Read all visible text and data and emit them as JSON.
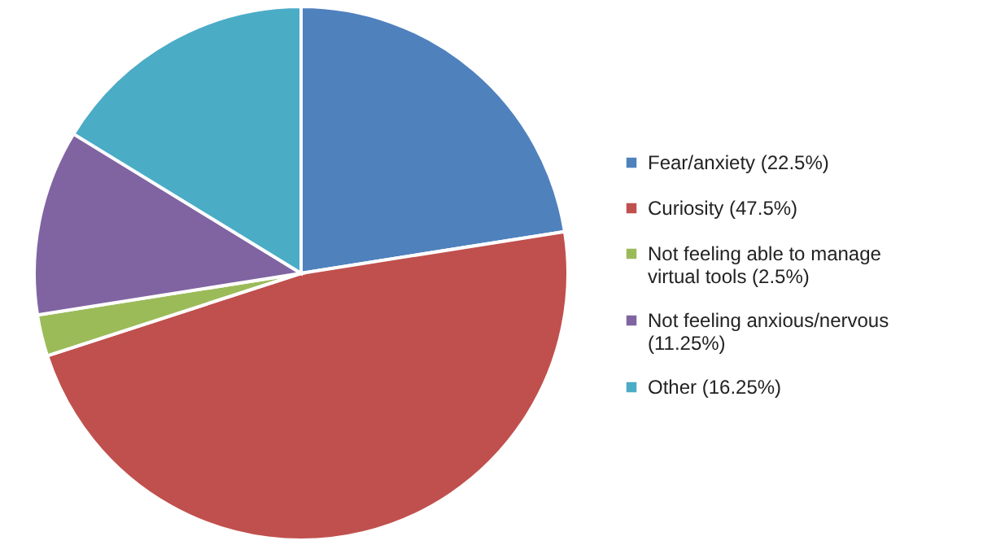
{
  "chart_data": {
    "type": "pie",
    "categories": [
      "Fear/anxiety (22.5%)",
      "Curiosity (47.5%)",
      "Not feeling able to manage virtual tools (2.5%)",
      "Not feeling anxious/nervous (11.25%)",
      "Other (16.25%)"
    ],
    "values": [
      22.5,
      47.5,
      2.5,
      11.25,
      16.25
    ],
    "colors": [
      "#4f81bd",
      "#c0504d",
      "#9bbb59",
      "#8064a2",
      "#4bacc6"
    ],
    "legend": "right"
  }
}
